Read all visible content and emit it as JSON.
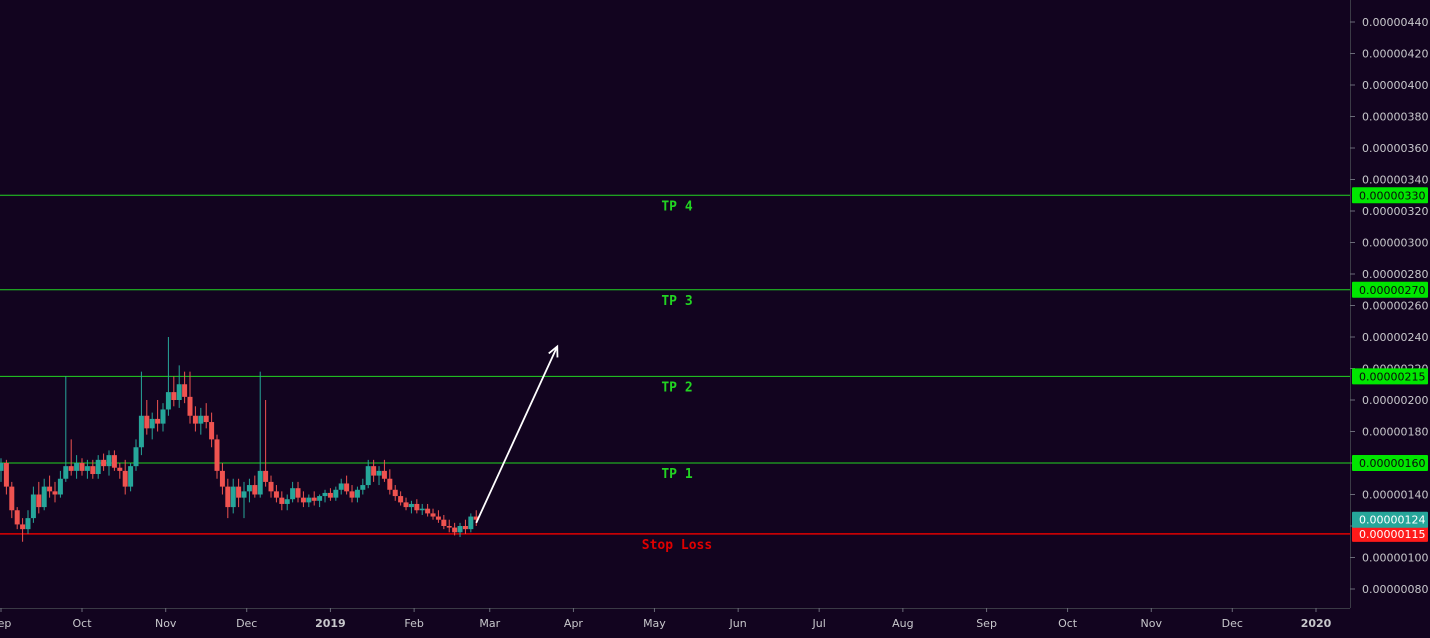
{
  "chart_data": {
    "type": "candlestick",
    "x_ticks": [
      "Sep",
      "Oct",
      "Nov",
      "Dec",
      "2019",
      "Feb",
      "Mar",
      "Apr",
      "May",
      "Jun",
      "Jul",
      "Aug",
      "Sep",
      "Oct",
      "Nov",
      "Dec",
      "2020"
    ],
    "y_ticks": [
      "0.00000080",
      "0.00000100",
      "0.00000120",
      "0.00000140",
      "0.00000160",
      "0.00000180",
      "0.00000200",
      "0.00000220",
      "0.00000240",
      "0.00000260",
      "0.00000280",
      "0.00000300",
      "0.00000320",
      "0.00000340",
      "0.00000360",
      "0.00000380",
      "0.00000400",
      "0.00000420",
      "0.00000440"
    ],
    "y_range": [
      6e-07,
      4.5e-06
    ],
    "y_scale": "linear",
    "grid": false,
    "levels": [
      {
        "label": "TP 4",
        "price": 3.3e-06,
        "price_label": "0.00000330",
        "color": "#22d422",
        "badge_color": "#00e600"
      },
      {
        "label": "TP 3",
        "price": 2.7e-06,
        "price_label": "0.00000270",
        "color": "#22d422",
        "badge_color": "#00e600"
      },
      {
        "label": "TP 2",
        "price": 2.15e-06,
        "price_label": "0.00000215",
        "color": "#22d422",
        "badge_color": "#00e600"
      },
      {
        "label": "TP 1",
        "price": 1.6e-06,
        "price_label": "0.00000160",
        "color": "#22d422",
        "badge_color": "#00e600"
      },
      {
        "label": "Stop Loss",
        "price": 1.15e-06,
        "price_label": "0.00000115",
        "color": "#e00000",
        "badge_color": "#ff1a1a"
      }
    ],
    "last_price": {
      "price": 1.24e-06,
      "label": "0.00000124",
      "color": "#26a69a"
    },
    "candles": [
      {
        "date": "2018-09-01",
        "o": 155,
        "h": 163,
        "l": 148,
        "c": 160
      },
      {
        "date": "2018-09-03",
        "o": 160,
        "h": 162,
        "l": 140,
        "c": 145
      },
      {
        "date": "2018-09-05",
        "o": 145,
        "h": 148,
        "l": 125,
        "c": 130
      },
      {
        "date": "2018-09-07",
        "o": 130,
        "h": 132,
        "l": 118,
        "c": 121
      },
      {
        "date": "2018-09-09",
        "o": 121,
        "h": 125,
        "l": 110,
        "c": 118
      },
      {
        "date": "2018-09-11",
        "o": 118,
        "h": 130,
        "l": 115,
        "c": 125
      },
      {
        "date": "2018-09-13",
        "o": 125,
        "h": 145,
        "l": 122,
        "c": 140
      },
      {
        "date": "2018-09-15",
        "o": 140,
        "h": 148,
        "l": 128,
        "c": 132
      },
      {
        "date": "2018-09-17",
        "o": 132,
        "h": 150,
        "l": 130,
        "c": 145
      },
      {
        "date": "2018-09-19",
        "o": 145,
        "h": 152,
        "l": 138,
        "c": 142
      },
      {
        "date": "2018-09-21",
        "o": 142,
        "h": 148,
        "l": 135,
        "c": 140
      },
      {
        "date": "2018-09-23",
        "o": 140,
        "h": 155,
        "l": 138,
        "c": 150
      },
      {
        "date": "2018-09-25",
        "o": 150,
        "h": 215,
        "l": 148,
        "c": 158
      },
      {
        "date": "2018-09-27",
        "o": 158,
        "h": 175,
        "l": 152,
        "c": 155
      },
      {
        "date": "2018-09-29",
        "o": 155,
        "h": 165,
        "l": 150,
        "c": 160
      },
      {
        "date": "2018-10-01",
        "o": 160,
        "h": 163,
        "l": 152,
        "c": 155
      },
      {
        "date": "2018-10-03",
        "o": 155,
        "h": 162,
        "l": 150,
        "c": 158
      },
      {
        "date": "2018-10-05",
        "o": 158,
        "h": 162,
        "l": 150,
        "c": 153
      },
      {
        "date": "2018-10-07",
        "o": 153,
        "h": 165,
        "l": 150,
        "c": 162
      },
      {
        "date": "2018-10-09",
        "o": 162,
        "h": 166,
        "l": 155,
        "c": 158
      },
      {
        "date": "2018-10-11",
        "o": 158,
        "h": 168,
        "l": 152,
        "c": 165
      },
      {
        "date": "2018-10-13",
        "o": 165,
        "h": 168,
        "l": 155,
        "c": 157
      },
      {
        "date": "2018-10-15",
        "o": 157,
        "h": 160,
        "l": 150,
        "c": 155
      },
      {
        "date": "2018-10-17",
        "o": 155,
        "h": 162,
        "l": 140,
        "c": 145
      },
      {
        "date": "2018-10-19",
        "o": 145,
        "h": 160,
        "l": 142,
        "c": 158
      },
      {
        "date": "2018-10-21",
        "o": 158,
        "h": 175,
        "l": 155,
        "c": 170
      },
      {
        "date": "2018-10-23",
        "o": 170,
        "h": 218,
        "l": 165,
        "c": 190
      },
      {
        "date": "2018-10-25",
        "o": 190,
        "h": 200,
        "l": 178,
        "c": 182
      },
      {
        "date": "2018-10-27",
        "o": 182,
        "h": 192,
        "l": 175,
        "c": 188
      },
      {
        "date": "2018-10-29",
        "o": 188,
        "h": 200,
        "l": 180,
        "c": 185
      },
      {
        "date": "2018-10-31",
        "o": 185,
        "h": 198,
        "l": 180,
        "c": 194
      },
      {
        "date": "2018-11-02",
        "o": 194,
        "h": 240,
        "l": 190,
        "c": 205
      },
      {
        "date": "2018-11-04",
        "o": 205,
        "h": 215,
        "l": 196,
        "c": 200
      },
      {
        "date": "2018-11-06",
        "o": 200,
        "h": 222,
        "l": 195,
        "c": 210
      },
      {
        "date": "2018-11-08",
        "o": 210,
        "h": 218,
        "l": 198,
        "c": 202
      },
      {
        "date": "2018-11-10",
        "o": 202,
        "h": 218,
        "l": 185,
        "c": 190
      },
      {
        "date": "2018-11-12",
        "o": 190,
        "h": 196,
        "l": 180,
        "c": 185
      },
      {
        "date": "2018-11-14",
        "o": 185,
        "h": 195,
        "l": 178,
        "c": 190
      },
      {
        "date": "2018-11-16",
        "o": 190,
        "h": 198,
        "l": 182,
        "c": 186
      },
      {
        "date": "2018-11-18",
        "o": 186,
        "h": 192,
        "l": 170,
        "c": 175
      },
      {
        "date": "2018-11-20",
        "o": 175,
        "h": 178,
        "l": 150,
        "c": 155
      },
      {
        "date": "2018-11-22",
        "o": 155,
        "h": 160,
        "l": 140,
        "c": 145
      },
      {
        "date": "2018-11-24",
        "o": 145,
        "h": 150,
        "l": 125,
        "c": 132
      },
      {
        "date": "2018-11-26",
        "o": 132,
        "h": 150,
        "l": 128,
        "c": 145
      },
      {
        "date": "2018-11-28",
        "o": 145,
        "h": 150,
        "l": 132,
        "c": 138
      },
      {
        "date": "2018-11-30",
        "o": 138,
        "h": 148,
        "l": 125,
        "c": 142
      },
      {
        "date": "2018-12-02",
        "o": 142,
        "h": 150,
        "l": 135,
        "c": 146
      },
      {
        "date": "2018-12-04",
        "o": 146,
        "h": 152,
        "l": 138,
        "c": 140
      },
      {
        "date": "2018-12-06",
        "o": 140,
        "h": 218,
        "l": 138,
        "c": 155
      },
      {
        "date": "2018-12-08",
        "o": 155,
        "h": 200,
        "l": 145,
        "c": 148
      },
      {
        "date": "2018-12-10",
        "o": 148,
        "h": 152,
        "l": 138,
        "c": 142
      },
      {
        "date": "2018-12-12",
        "o": 142,
        "h": 146,
        "l": 135,
        "c": 138
      },
      {
        "date": "2018-12-14",
        "o": 138,
        "h": 142,
        "l": 130,
        "c": 134
      },
      {
        "date": "2018-12-16",
        "o": 134,
        "h": 140,
        "l": 130,
        "c": 137
      },
      {
        "date": "2018-12-18",
        "o": 137,
        "h": 148,
        "l": 135,
        "c": 144
      },
      {
        "date": "2018-12-20",
        "o": 144,
        "h": 148,
        "l": 135,
        "c": 138
      },
      {
        "date": "2018-12-22",
        "o": 138,
        "h": 142,
        "l": 132,
        "c": 135
      },
      {
        "date": "2018-12-24",
        "o": 135,
        "h": 140,
        "l": 132,
        "c": 138
      },
      {
        "date": "2018-12-26",
        "o": 138,
        "h": 142,
        "l": 133,
        "c": 136
      },
      {
        "date": "2018-12-28",
        "o": 136,
        "h": 140,
        "l": 132,
        "c": 139
      },
      {
        "date": "2018-12-30",
        "o": 139,
        "h": 143,
        "l": 135,
        "c": 141
      },
      {
        "date": "2019-01-01",
        "o": 141,
        "h": 144,
        "l": 136,
        "c": 138
      },
      {
        "date": "2019-01-03",
        "o": 138,
        "h": 145,
        "l": 136,
        "c": 143
      },
      {
        "date": "2019-01-05",
        "o": 143,
        "h": 150,
        "l": 140,
        "c": 147
      },
      {
        "date": "2019-01-07",
        "o": 147,
        "h": 152,
        "l": 140,
        "c": 142
      },
      {
        "date": "2019-01-09",
        "o": 142,
        "h": 146,
        "l": 135,
        "c": 138
      },
      {
        "date": "2019-01-11",
        "o": 138,
        "h": 145,
        "l": 135,
        "c": 143
      },
      {
        "date": "2019-01-13",
        "o": 143,
        "h": 150,
        "l": 140,
        "c": 146
      },
      {
        "date": "2019-01-15",
        "o": 146,
        "h": 162,
        "l": 144,
        "c": 158
      },
      {
        "date": "2019-01-17",
        "o": 158,
        "h": 162,
        "l": 148,
        "c": 152
      },
      {
        "date": "2019-01-19",
        "o": 152,
        "h": 158,
        "l": 146,
        "c": 155
      },
      {
        "date": "2019-01-21",
        "o": 155,
        "h": 162,
        "l": 148,
        "c": 150
      },
      {
        "date": "2019-01-23",
        "o": 150,
        "h": 156,
        "l": 140,
        "c": 143
      },
      {
        "date": "2019-01-25",
        "o": 143,
        "h": 146,
        "l": 136,
        "c": 139
      },
      {
        "date": "2019-01-27",
        "o": 139,
        "h": 142,
        "l": 133,
        "c": 135
      },
      {
        "date": "2019-01-29",
        "o": 135,
        "h": 138,
        "l": 130,
        "c": 132
      },
      {
        "date": "2019-01-31",
        "o": 132,
        "h": 136,
        "l": 128,
        "c": 134
      },
      {
        "date": "2019-02-02",
        "o": 134,
        "h": 137,
        "l": 128,
        "c": 130
      },
      {
        "date": "2019-02-04",
        "o": 130,
        "h": 134,
        "l": 127,
        "c": 131
      },
      {
        "date": "2019-02-06",
        "o": 131,
        "h": 134,
        "l": 126,
        "c": 128
      },
      {
        "date": "2019-02-08",
        "o": 128,
        "h": 131,
        "l": 124,
        "c": 126
      },
      {
        "date": "2019-02-10",
        "o": 126,
        "h": 130,
        "l": 122,
        "c": 124
      },
      {
        "date": "2019-02-12",
        "o": 124,
        "h": 127,
        "l": 118,
        "c": 120
      },
      {
        "date": "2019-02-14",
        "o": 120,
        "h": 124,
        "l": 116,
        "c": 119
      },
      {
        "date": "2019-02-16",
        "o": 119,
        "h": 122,
        "l": 114,
        "c": 116
      },
      {
        "date": "2019-02-18",
        "o": 116,
        "h": 122,
        "l": 113,
        "c": 120
      },
      {
        "date": "2019-02-20",
        "o": 120,
        "h": 124,
        "l": 115,
        "c": 118
      },
      {
        "date": "2019-02-22",
        "o": 118,
        "h": 128,
        "l": 116,
        "c": 126
      },
      {
        "date": "2019-02-24",
        "o": 126,
        "h": 130,
        "l": 120,
        "c": 124
      }
    ],
    "annotation": {
      "type": "arrow",
      "from": {
        "date": "2019-02-24",
        "price": 1.22e-06
      },
      "to": {
        "date": "2019-03-26",
        "price": 2.34e-06
      },
      "color": "#ffffff"
    },
    "colors": {
      "up": "#26a69a",
      "down": "#ef5350",
      "axis_text": "#c8c8cc",
      "background": "#12041f",
      "axis_line": "#3a3a45"
    },
    "price_scale_unit": 1e-08
  }
}
